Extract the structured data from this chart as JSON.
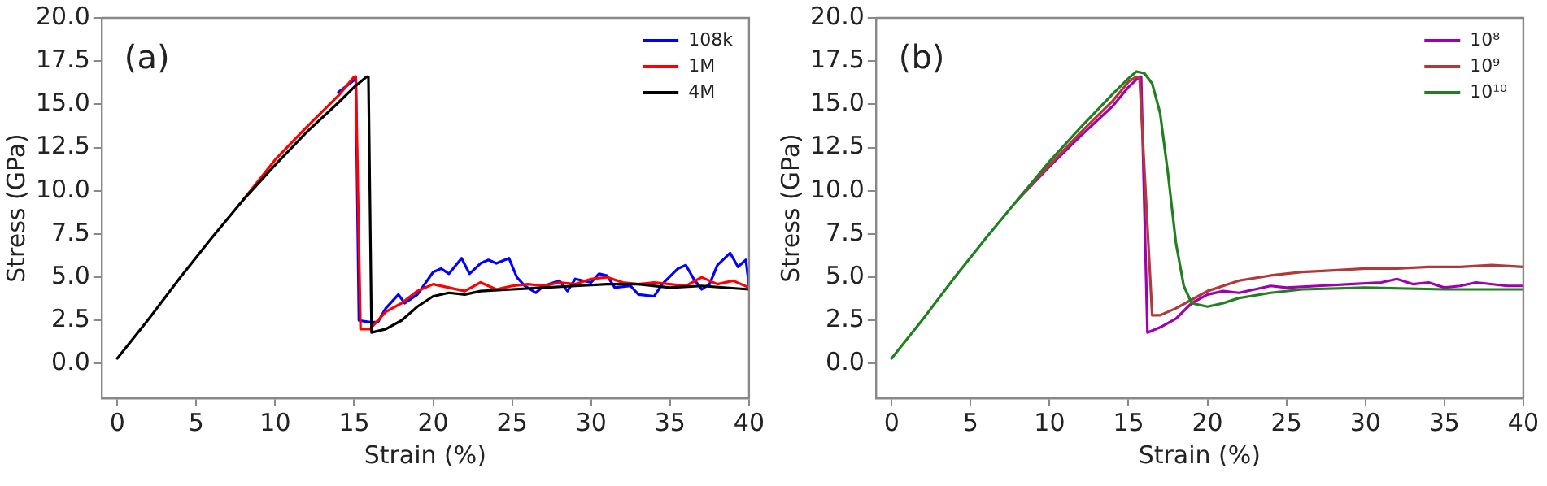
{
  "chart_data": [
    {
      "type": "line",
      "xlabel": "Strain (%)",
      "ylabel": "Stress (GPa)",
      "annotations": [
        "(a)"
      ],
      "legend": "top right",
      "grid": false,
      "marker": "none",
      "line_style": "solid",
      "xlim": [
        -1,
        40
      ],
      "xticks": [
        0,
        5,
        10,
        15,
        20,
        25,
        30,
        35,
        40
      ],
      "ylim": [
        -2,
        20
      ],
      "yticks": [
        {
          "value": 0,
          "label": "0.0"
        },
        {
          "value": 2.5,
          "label": "2.5"
        },
        {
          "value": 5,
          "label": "5.0"
        },
        {
          "value": 7.5,
          "label": "7.5"
        },
        {
          "value": 10,
          "label": "10.0"
        },
        {
          "value": 12.5,
          "label": "12.5"
        },
        {
          "value": 15,
          "label": "15.0"
        },
        {
          "value": 17.5,
          "label": "17.5"
        },
        {
          "value": 20,
          "label": "20.0"
        }
      ],
      "series": [
        {
          "name": "108k",
          "color": "#0000ff",
          "x": [
            14,
            15,
            15.1,
            15.3,
            16,
            16.5,
            17,
            17.8,
            18.2,
            19,
            20,
            20.5,
            21,
            21.8,
            22.3,
            23,
            23.5,
            24,
            24.8,
            25.3,
            25.8,
            26.5,
            27,
            28,
            28.5,
            29,
            30,
            30.5,
            31,
            31.5,
            32.5,
            33,
            34,
            34.5,
            35.5,
            36,
            36.5,
            37,
            37.5,
            38,
            38.8,
            39.3,
            39.8,
            40
          ],
          "values": [
            15.7,
            16.4,
            16.6,
            2.5,
            2.4,
            2.4,
            3.2,
            4.0,
            3.5,
            4.0,
            5.3,
            5.5,
            5.2,
            6.1,
            5.2,
            5.8,
            6.0,
            5.8,
            6.1,
            5.0,
            4.5,
            4.1,
            4.5,
            4.8,
            4.2,
            4.9,
            4.7,
            5.2,
            5.1,
            4.4,
            4.5,
            4.0,
            3.9,
            4.6,
            5.5,
            5.7,
            4.9,
            4.3,
            4.6,
            5.7,
            6.4,
            5.6,
            6.0,
            4.5
          ]
        },
        {
          "name": "1M",
          "color": "#ff0000",
          "x": [
            8,
            10,
            12,
            14,
            15,
            15.1,
            15.4,
            16,
            16.5,
            17,
            18,
            19,
            20,
            21,
            22,
            23,
            24,
            25,
            26,
            27,
            28,
            29,
            30,
            31,
            32,
            33,
            34,
            35,
            36,
            37,
            38,
            39,
            40
          ],
          "values": [
            9.5,
            11.8,
            13.7,
            15.5,
            16.6,
            16.6,
            2.0,
            2.0,
            2.5,
            3.0,
            3.5,
            4.2,
            4.6,
            4.4,
            4.2,
            4.7,
            4.3,
            4.5,
            4.6,
            4.5,
            4.7,
            4.6,
            4.9,
            5.0,
            4.7,
            4.6,
            4.7,
            4.6,
            4.5,
            5.0,
            4.6,
            4.8,
            4.4
          ]
        },
        {
          "name": "4M",
          "color": "#000000",
          "x": [
            0,
            2,
            4,
            6,
            8,
            10,
            12,
            14,
            15,
            15.8,
            15.9,
            16.1,
            17,
            18,
            19,
            20,
            21,
            22,
            23,
            25,
            27,
            29,
            31,
            33,
            35,
            37,
            40
          ],
          "values": [
            0.3,
            2.6,
            5.0,
            7.3,
            9.5,
            11.5,
            13.4,
            15.1,
            16.0,
            16.6,
            16.6,
            1.8,
            2.0,
            2.5,
            3.3,
            3.9,
            4.1,
            4.0,
            4.2,
            4.3,
            4.4,
            4.5,
            4.6,
            4.6,
            4.4,
            4.5,
            4.3
          ]
        }
      ]
    },
    {
      "type": "line",
      "xlabel": "Strain (%)",
      "ylabel": "Stress (GPa)",
      "annotations": [
        "(b)"
      ],
      "legend": "top right",
      "grid": false,
      "marker": "none",
      "line_style": "solid",
      "xlim": [
        -1,
        40
      ],
      "xticks": [
        0,
        5,
        10,
        15,
        20,
        25,
        30,
        35,
        40
      ],
      "ylim": [
        -2,
        20
      ],
      "yticks": [
        {
          "value": 0,
          "label": "0.0"
        },
        {
          "value": 2.5,
          "label": "2.5"
        },
        {
          "value": 5,
          "label": "5.0"
        },
        {
          "value": 7.5,
          "label": "7.5"
        },
        {
          "value": 10,
          "label": "10.0"
        },
        {
          "value": 12.5,
          "label": "12.5"
        },
        {
          "value": 15,
          "label": "15.0"
        },
        {
          "value": 17.5,
          "label": "17.5"
        },
        {
          "value": 20,
          "label": "20.0"
        }
      ],
      "series": [
        {
          "name": "10⁸",
          "color": "#a000b0",
          "x": [
            8,
            10,
            12,
            14,
            15,
            15.7,
            15.8,
            16.2,
            17,
            18,
            19,
            20,
            21,
            22,
            23,
            24,
            25,
            27,
            29,
            31,
            32,
            33,
            34,
            35,
            36,
            37,
            39,
            40
          ],
          "values": [
            9.5,
            11.4,
            13.2,
            14.9,
            16.0,
            16.6,
            16.6,
            1.8,
            2.1,
            2.6,
            3.5,
            4.0,
            4.2,
            4.1,
            4.3,
            4.5,
            4.4,
            4.5,
            4.6,
            4.7,
            4.9,
            4.6,
            4.7,
            4.4,
            4.5,
            4.7,
            4.5,
            4.5
          ]
        },
        {
          "name": "10⁹",
          "color": "#b03a3a",
          "x": [
            8,
            10,
            12,
            14,
            15,
            15.5,
            15.7,
            16.5,
            17,
            18,
            19,
            20,
            22,
            24,
            26,
            28,
            30,
            32,
            34,
            36,
            38,
            40
          ],
          "values": [
            9.5,
            11.5,
            13.4,
            15.2,
            16.3,
            16.6,
            16.5,
            2.8,
            2.8,
            3.2,
            3.7,
            4.2,
            4.8,
            5.1,
            5.3,
            5.4,
            5.5,
            5.5,
            5.6,
            5.6,
            5.7,
            5.6
          ]
        },
        {
          "name": "10¹⁰",
          "color": "#208020",
          "x": [
            0,
            2,
            4,
            6,
            8,
            10,
            12,
            14,
            15,
            15.5,
            16,
            16.5,
            17,
            17.5,
            18,
            18.5,
            19,
            20,
            21,
            22,
            24,
            26,
            30,
            35,
            40
          ],
          "values": [
            0.3,
            2.6,
            5.0,
            7.3,
            9.5,
            11.7,
            13.7,
            15.6,
            16.5,
            16.9,
            16.8,
            16.2,
            14.5,
            11.0,
            7.0,
            4.5,
            3.5,
            3.3,
            3.5,
            3.8,
            4.1,
            4.3,
            4.4,
            4.3,
            4.3
          ]
        }
      ]
    }
  ]
}
